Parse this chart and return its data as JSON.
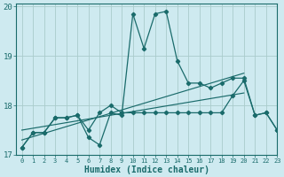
{
  "xlabel": "Humidex (Indice chaleur)",
  "ylabel": "",
  "xlim": [
    -0.5,
    23
  ],
  "ylim": [
    17,
    20.05
  ],
  "background_color": "#ceeaf0",
  "grid_color": "#aacccc",
  "line_color": "#1a6b6b",
  "x": [
    0,
    1,
    2,
    3,
    4,
    5,
    6,
    7,
    8,
    9,
    10,
    11,
    12,
    13,
    14,
    15,
    16,
    17,
    18,
    19,
    20,
    21,
    22,
    23
  ],
  "line1": [
    17.15,
    17.45,
    17.45,
    17.75,
    17.75,
    17.8,
    17.35,
    17.2,
    17.85,
    17.8,
    19.85,
    19.15,
    19.85,
    19.9,
    18.9,
    18.45,
    18.45,
    18.35,
    18.45,
    18.55,
    18.55,
    17.8,
    17.85,
    17.5
  ],
  "line2": [
    17.15,
    17.45,
    17.45,
    17.75,
    17.75,
    17.8,
    17.5,
    17.85,
    18.0,
    17.85,
    17.85,
    17.85,
    17.85,
    17.85,
    17.85,
    17.85,
    17.85,
    17.85,
    17.85,
    18.2,
    18.5,
    17.8,
    17.85,
    17.5
  ],
  "line3_x": [
    0,
    20
  ],
  "line3_y": [
    17.3,
    18.65
  ],
  "line4_x": [
    0,
    20
  ],
  "line4_y": [
    17.5,
    18.25
  ],
  "yticks": [
    17,
    18,
    19,
    20
  ],
  "xticks": [
    0,
    1,
    2,
    3,
    4,
    5,
    6,
    7,
    8,
    9,
    10,
    11,
    12,
    13,
    14,
    15,
    16,
    17,
    18,
    19,
    20,
    21,
    22,
    23
  ]
}
